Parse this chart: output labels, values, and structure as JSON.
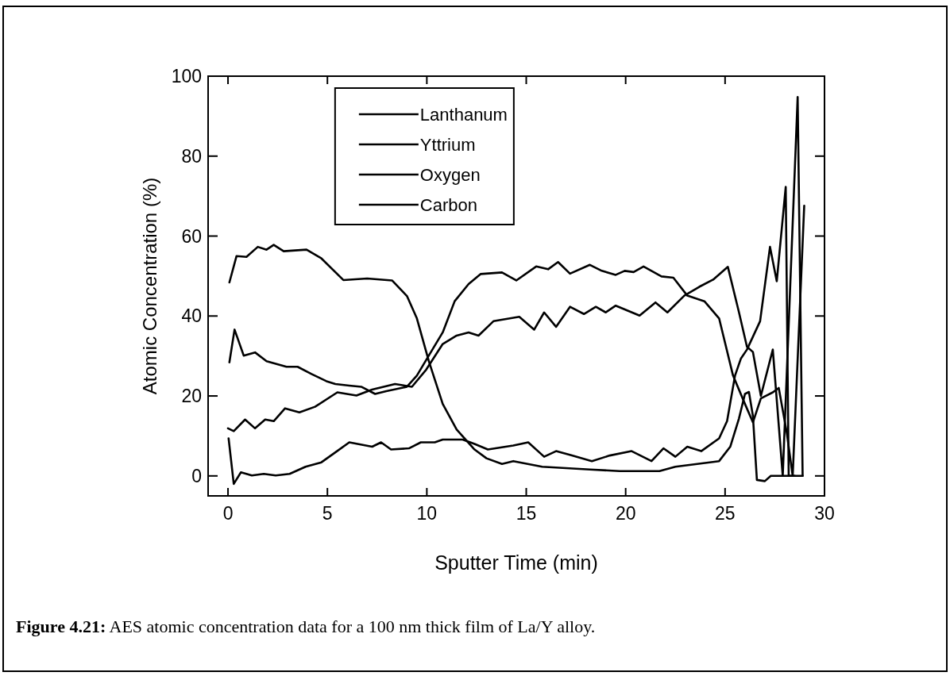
{
  "chart_data": {
    "type": "line",
    "xlabel": "Sputter Time (min)",
    "ylabel": "Atomic Concentration (%)",
    "xlim": [
      -1,
      30
    ],
    "ylim": [
      -5,
      100
    ],
    "xticks": [
      0,
      5,
      10,
      15,
      20,
      25,
      30
    ],
    "yticks": [
      0,
      20,
      40,
      60,
      80,
      100
    ],
    "grid": false,
    "legend": "top",
    "marker": "none",
    "line_style": "solid",
    "annotations": [
      "Figure 4.21: AES atomic concentration data for a 100 nm thick film of La/Y alloy."
    ],
    "series": [
      {
        "name": "Lanthanum",
        "color": "#000000",
        "x": [
          0.07,
          0.33,
          0.79,
          1.36,
          1.94,
          2.94,
          3.5,
          4.2,
          4.95,
          5.4,
          6.1,
          6.7,
          7.4,
          7.96,
          9,
          9.5,
          10.1,
          10.8,
          11.4,
          12.1,
          12.7,
          13.78,
          14.5,
          15.5,
          16.1,
          16.6,
          17.2,
          18.2,
          18.8,
          19.5,
          19.95,
          20.4,
          20.9,
          21.8,
          22.4,
          23.1,
          23.96,
          24.7,
          25.4,
          26,
          26.4,
          26.8,
          27.4,
          27.7,
          28.1,
          28.4,
          28.98
        ],
        "values": [
          28.4,
          36.6,
          30.1,
          30.9,
          28.7,
          27.3,
          27.3,
          25.5,
          23.7,
          23,
          22.6,
          22.3,
          20.5,
          21.2,
          22.3,
          25.1,
          30.1,
          35.9,
          43.7,
          48,
          50.5,
          50.9,
          48.9,
          52.4,
          51.7,
          53.5,
          50.6,
          52.8,
          51.3,
          50.3,
          51.3,
          51,
          52.4,
          49.9,
          49.6,
          45.1,
          43.7,
          39.4,
          25.1,
          18,
          13.4,
          19.4,
          20.9,
          22,
          10.9,
          0,
          67.6
        ]
      },
      {
        "name": "Yttrium",
        "color": "#000000",
        "x": [
          0.07,
          0.43,
          0.93,
          1.5,
          1.94,
          2.3,
          2.8,
          3.95,
          4.7,
          5.8,
          7,
          8.25,
          9,
          9.5,
          10.1,
          10.8,
          11.5,
          12.4,
          13,
          13.78,
          14.35,
          15.8,
          18.2,
          19.7,
          21.7,
          22.5,
          24.7,
          25.26,
          25.7,
          26,
          26.2,
          26.4,
          26.6,
          27,
          27.3,
          28.9
        ],
        "values": [
          48.4,
          55,
          54.8,
          57.3,
          56.6,
          57.8,
          56.2,
          56.6,
          54.4,
          49,
          49.4,
          48.9,
          45,
          39.4,
          28.7,
          18,
          11.6,
          6.6,
          4.4,
          3,
          3.7,
          2.3,
          1.6,
          1.2,
          1.2,
          2.3,
          3.7,
          7.3,
          14.4,
          20.5,
          21,
          15,
          -1,
          -1.3,
          0,
          0
        ]
      },
      {
        "name": "Oxygen",
        "color": "#000000",
        "x": [
          0,
          0.29,
          0.86,
          1.36,
          1.87,
          2.3,
          2.87,
          3.59,
          4.38,
          5.5,
          6.46,
          7.25,
          8.4,
          9.25,
          9.97,
          10.8,
          11.5,
          12.1,
          12.6,
          13.35,
          14.65,
          15.4,
          15.9,
          16.5,
          17.2,
          17.9,
          18.5,
          19,
          19.5,
          20.7,
          21.5,
          22.1,
          22.95,
          23.7,
          24.4,
          25.14,
          25.7,
          26.1,
          26.4,
          26.8,
          27.4,
          27.9,
          28.65,
          28.9
        ],
        "values": [
          11.9,
          11.2,
          14.1,
          11.9,
          14.1,
          13.7,
          16.9,
          15.9,
          17.3,
          20.9,
          20.1,
          21.6,
          23,
          22.3,
          26.6,
          33,
          35.1,
          35.9,
          35.1,
          38.7,
          39.8,
          36.6,
          40.9,
          37.3,
          42.3,
          40.5,
          42.3,
          40.9,
          42.6,
          40.1,
          43.4,
          40.9,
          45.1,
          47.3,
          49.1,
          52.3,
          40.9,
          32.3,
          31,
          20,
          31.6,
          0,
          94.8,
          0
        ]
      },
      {
        "name": "Carbon",
        "color": "#000000",
        "x": [
          0.03,
          0.29,
          0.65,
          1.2,
          1.8,
          2.4,
          3.1,
          3.9,
          4.7,
          5.4,
          6.1,
          7.25,
          7.7,
          8.2,
          9.1,
          9.7,
          10.4,
          10.8,
          11.8,
          12.4,
          13.07,
          14.35,
          15.1,
          15.9,
          16.5,
          17.3,
          18.3,
          19.2,
          20.3,
          21.3,
          21.9,
          22.5,
          23.1,
          23.8,
          24.7,
          25.1,
          25.5,
          25.8,
          26.1,
          26.76,
          27.26,
          27.6,
          28.05,
          28.2,
          28.5
        ],
        "values": [
          9.4,
          -2,
          0.9,
          0.1,
          0.5,
          0.1,
          0.5,
          2.3,
          3.4,
          5.9,
          8.4,
          7.3,
          8.4,
          6.6,
          6.9,
          8.4,
          8.4,
          9.1,
          9.1,
          8,
          6.6,
          7.6,
          8.4,
          4.8,
          6.2,
          5.1,
          3.7,
          5.1,
          6.2,
          3.7,
          6.9,
          4.8,
          7.3,
          6.2,
          9.4,
          13.7,
          25.1,
          29.4,
          31.6,
          38.7,
          57.3,
          48.7,
          72.3,
          0,
          0
        ]
      }
    ]
  }
}
